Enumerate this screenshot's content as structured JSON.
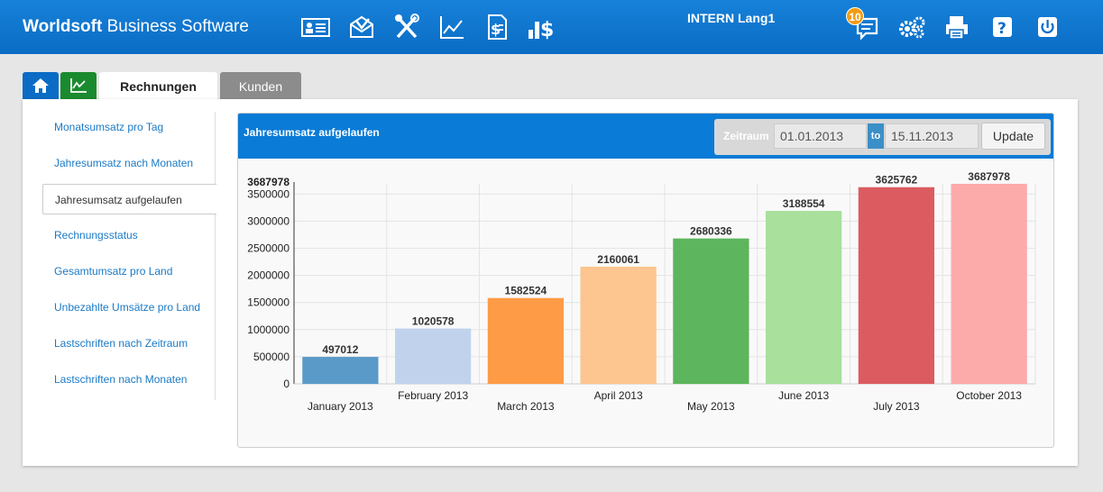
{
  "header": {
    "brand_bold": "Worldsoft",
    "brand_rest": " Business Software",
    "user": "INTERN Lang1",
    "notification_count": "10",
    "toolbar_icons": [
      "contact-card-icon",
      "mail-icon",
      "tools-icon",
      "line-chart-icon",
      "invoice-icon",
      "sales-dollar-icon"
    ],
    "right_icons": [
      "chat-icon",
      "settings-icon",
      "print-icon",
      "help-icon",
      "power-icon"
    ],
    "bg_color": "#0a6cc4"
  },
  "tabs": {
    "home_icon": "home-icon",
    "chart_icon": "chart-icon",
    "rechnungen": "Rechnungen",
    "kunden": "Kunden"
  },
  "sidebar": {
    "items": [
      {
        "label": "Monatsumsatz pro Tag",
        "active": false
      },
      {
        "label": "Jahresumsatz nach Monaten",
        "active": false
      },
      {
        "label": "Jahresumsatz aufgelaufen",
        "active": true
      },
      {
        "label": "Rechnungsstatus",
        "active": false
      },
      {
        "label": "Gesamtumsatz pro Land",
        "active": false
      },
      {
        "label": "Unbezahlte Umsätze pro Land",
        "active": false
      },
      {
        "label": "Lastschriften nach Zeitraum",
        "active": false
      },
      {
        "label": "Lastschriften nach Monaten",
        "active": false
      }
    ]
  },
  "panel": {
    "title": "Jahresumsatz aufgelaufen",
    "zeitraum_label": "Zeitraum",
    "from_value": "01.01.2013",
    "to_label": "to",
    "to_value": "15.11.2013",
    "update_label": "Update"
  },
  "chart_data": {
    "type": "bar",
    "title": "",
    "xlabel": "",
    "ylabel": "",
    "categories": [
      "January 2013",
      "February 2013",
      "March 2013",
      "April 2013",
      "May 2013",
      "June 2013",
      "July 2013",
      "October 2013"
    ],
    "values": [
      497012,
      1020578,
      1582524,
      2160061,
      2680336,
      3188554,
      3625762,
      3687978
    ],
    "colors": [
      "#5a9ac8",
      "#c1d3ec",
      "#fe9b46",
      "#fdc58f",
      "#5db55d",
      "#a8e09c",
      "#dc5b61",
      "#fdaaaa"
    ],
    "ylim": [
      0,
      3687978
    ],
    "yticks": [
      0,
      500000,
      1000000,
      1500000,
      2000000,
      2500000,
      3000000,
      3500000
    ],
    "ymax_label": "3687978",
    "grid": true,
    "legend": "none"
  }
}
